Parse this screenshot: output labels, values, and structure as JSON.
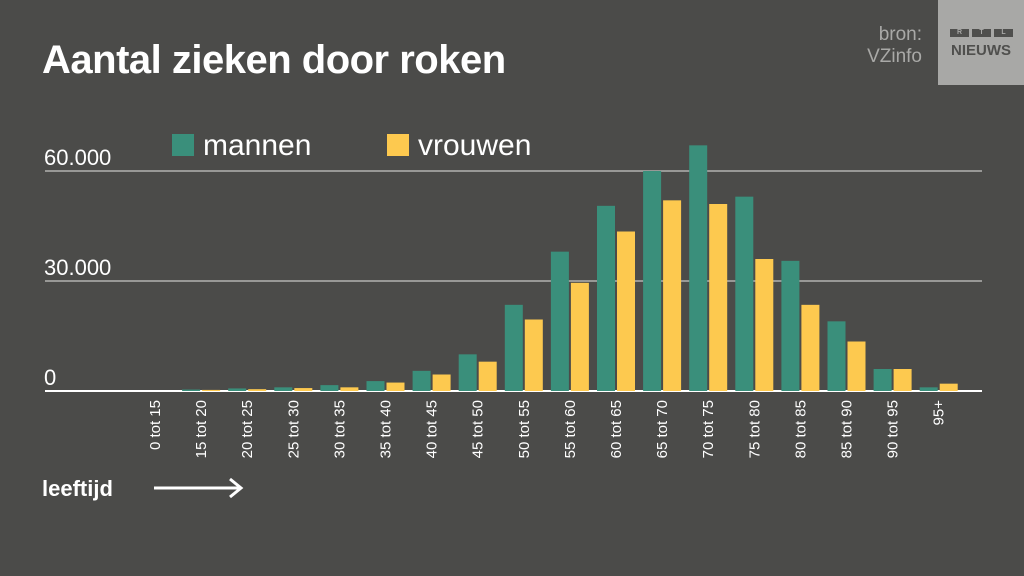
{
  "title": "Aantal zieken door roken",
  "source": {
    "line1": "bron:",
    "line2": "VZinfo"
  },
  "logo": {
    "letters": [
      "R",
      "T",
      "L"
    ],
    "text": "NIEUWS"
  },
  "xlabel_note": "leeftijd",
  "colors": {
    "background": "#4b4b49",
    "mannen": "#3a8f7b",
    "vrouwen": "#fdc94f",
    "grid": "#ffffff"
  },
  "chart_data": {
    "type": "bar",
    "title": "Aantal zieken door roken",
    "xlabel": "leeftijd",
    "ylabel": "",
    "ylim": [
      0,
      67000
    ],
    "yticks": [
      0,
      30000,
      60000
    ],
    "ytick_labels": [
      "0",
      "30.000",
      "60.000"
    ],
    "grid": true,
    "legend": "top-left",
    "categories": [
      "0 tot 15",
      "15 tot 20",
      "20 tot 25",
      "25 tot 30",
      "30 tot 35",
      "35 tot 40",
      "40 tot 45",
      "45 tot 50",
      "50 tot 55",
      "55 tot 60",
      "60 tot 65",
      "65 tot 70",
      "70 tot 75",
      "75 tot 80",
      "80 tot 85",
      "85 tot 90",
      "90 tot 95",
      "95+"
    ],
    "series": [
      {
        "name": "mannen",
        "values": [
          0,
          400,
          700,
          1000,
          1600,
          2700,
          5500,
          10000,
          23500,
          38000,
          50500,
          60000,
          67000,
          53000,
          35500,
          19000,
          6000,
          1000
        ]
      },
      {
        "name": "vrouwen",
        "values": [
          0,
          300,
          500,
          800,
          1000,
          2300,
          4500,
          8000,
          19500,
          29500,
          43500,
          52000,
          51000,
          36000,
          23500,
          13500,
          6000,
          2000
        ]
      }
    ]
  }
}
